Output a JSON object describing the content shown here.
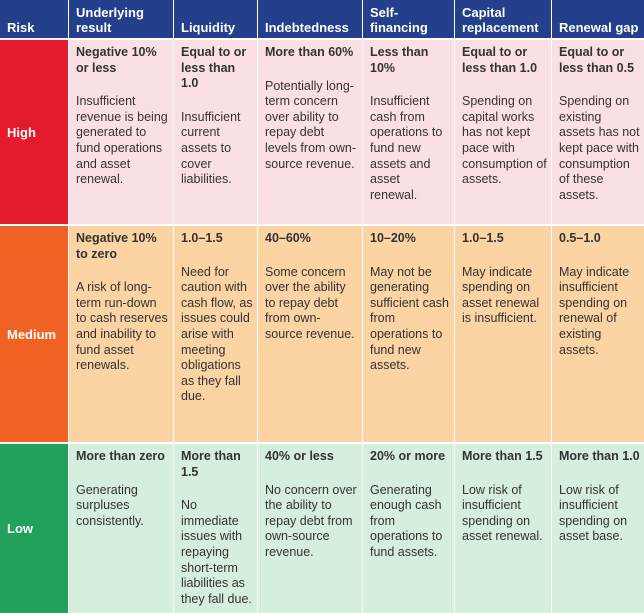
{
  "header": {
    "risk": "Risk",
    "columns": [
      "Underlying result",
      "Liquidity",
      "Indebtedness",
      "Self-financing",
      "Capital replacement",
      "Renewal gap"
    ]
  },
  "rows": [
    {
      "level": "High",
      "cells": [
        {
          "threshold": "Negative 10% or less",
          "description": "Insufficient revenue is being generated to fund operations and asset renewal."
        },
        {
          "threshold": "Equal to or less than 1.0",
          "description": "Insufficient current assets to cover liabilities."
        },
        {
          "threshold": "More than 60%",
          "description": "Potentially long-term concern over ability to repay debt levels from own-source revenue."
        },
        {
          "threshold": "Less than 10%",
          "description": "Insufficient cash from operations to fund new assets and asset renewal."
        },
        {
          "threshold": "Equal to or less than 1.0",
          "description": "Spending on capital works has not kept pace with consumption of assets."
        },
        {
          "threshold": "Equal to or less than 0.5",
          "description": "Spending on existing assets has not kept pace with consumption of these assets."
        }
      ]
    },
    {
      "level": "Medium",
      "cells": [
        {
          "threshold": "Negative 10% to zero",
          "description": "A risk of long-term run-down to cash reserves and inability to fund asset renewals."
        },
        {
          "threshold": "1.0–1.5",
          "description": "Need for caution with cash flow, as issues could arise with meeting obligations as they fall due."
        },
        {
          "threshold": "40–60%",
          "description": "Some concern over the ability to repay debt from own-source revenue."
        },
        {
          "threshold": "10–20%",
          "description": "May not be generating sufficient cash from operations to fund new assets."
        },
        {
          "threshold": "1.0–1.5",
          "description": "May indicate spending on asset renewal is insufficient."
        },
        {
          "threshold": "0.5–1.0",
          "description": "May indicate insufficient spending on renewal of existing assets."
        }
      ]
    },
    {
      "level": "Low",
      "cells": [
        {
          "threshold": "More than zero",
          "description": "Generating surpluses consistently."
        },
        {
          "threshold": "More than 1.5",
          "description": "No immediate issues with repaying short-term liabilities as they fall due."
        },
        {
          "threshold": "40% or less",
          "description": "No concern over the ability to repay debt from own-source revenue."
        },
        {
          "threshold": "20% or more",
          "description": "Generating enough cash from operations to fund assets."
        },
        {
          "threshold": "More than 1.5",
          "description": "Low risk of insufficient spending on asset renewal."
        },
        {
          "threshold": "More than 1.0",
          "description": "Low risk of insufficient spending on asset base."
        }
      ]
    }
  ],
  "colors": {
    "header_bg": "#243f8c",
    "high": "#e41b2d",
    "medium": "#ef6223",
    "low": "#21a159",
    "high_bg": "#fbe0e3",
    "medium_bg": "#fcd3a3",
    "low_bg": "#d6eede"
  }
}
